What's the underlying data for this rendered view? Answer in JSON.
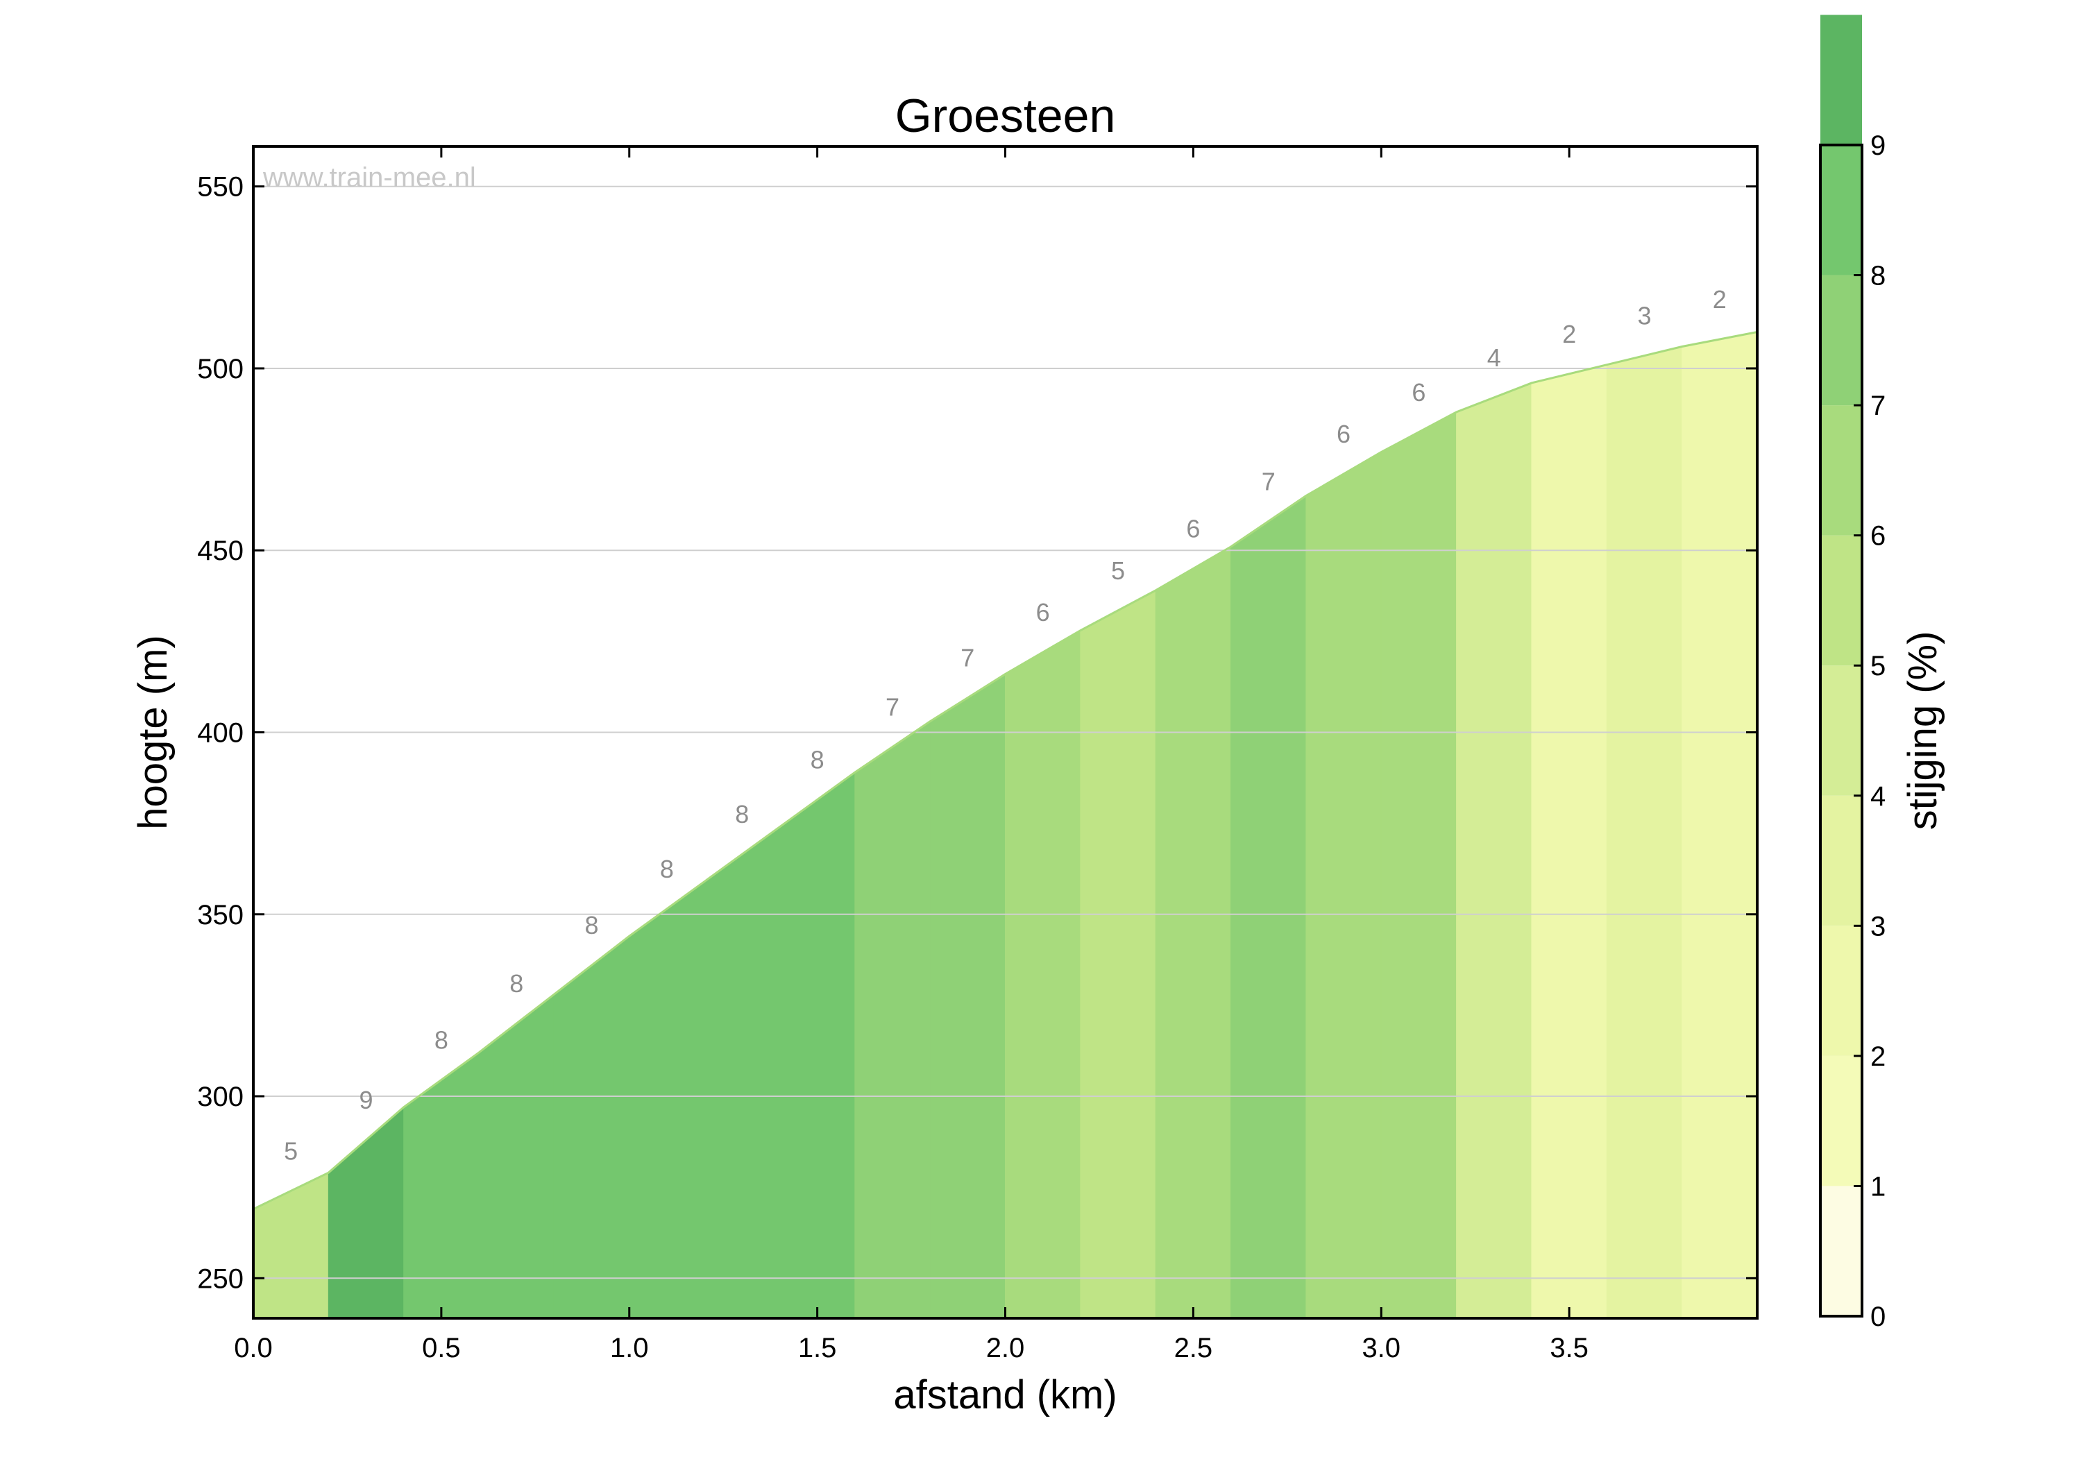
{
  "chart_data": {
    "type": "area",
    "title": "Groesteen",
    "watermark": "www.train-mee.nl",
    "xlabel": "afstand (km)",
    "ylabel": "hoogte (m)",
    "xlim": [
      0,
      4.0
    ],
    "ylim": [
      239,
      561
    ],
    "xticks": [
      0.0,
      0.5,
      1.0,
      1.5,
      2.0,
      2.5,
      3.0,
      3.5
    ],
    "xtick_labels": [
      "0.0",
      "0.5",
      "1.0",
      "1.5",
      "2.0",
      "2.5",
      "3.0",
      "3.5"
    ],
    "yticks": [
      250,
      300,
      350,
      400,
      450,
      500,
      550
    ],
    "ytick_labels": [
      "250",
      "300",
      "350",
      "400",
      "450",
      "500",
      "550"
    ],
    "grid": "horizontal",
    "segments": [
      {
        "x0": 0.0,
        "x1": 0.2,
        "y0": 269,
        "y1": 279,
        "grade": 5,
        "label": "5"
      },
      {
        "x0": 0.2,
        "x1": 0.4,
        "y0": 279,
        "y1": 297,
        "grade": 9,
        "label": "9"
      },
      {
        "x0": 0.4,
        "x1": 0.6,
        "y0": 297,
        "y1": 312,
        "grade": 8,
        "label": "8"
      },
      {
        "x0": 0.6,
        "x1": 0.8,
        "y0": 312,
        "y1": 328,
        "grade": 8,
        "label": "8"
      },
      {
        "x0": 0.8,
        "x1": 1.0,
        "y0": 328,
        "y1": 344,
        "grade": 8,
        "label": "8"
      },
      {
        "x0": 1.0,
        "x1": 1.2,
        "y0": 344,
        "y1": 359,
        "grade": 8,
        "label": "8"
      },
      {
        "x0": 1.2,
        "x1": 1.4,
        "y0": 359,
        "y1": 374,
        "grade": 8,
        "label": "8"
      },
      {
        "x0": 1.4,
        "x1": 1.6,
        "y0": 374,
        "y1": 389,
        "grade": 8,
        "label": "8"
      },
      {
        "x0": 1.6,
        "x1": 1.8,
        "y0": 389,
        "y1": 403,
        "grade": 7,
        "label": "7"
      },
      {
        "x0": 1.8,
        "x1": 2.0,
        "y0": 403,
        "y1": 416,
        "grade": 7,
        "label": "7"
      },
      {
        "x0": 2.0,
        "x1": 2.2,
        "y0": 416,
        "y1": 428,
        "grade": 6,
        "label": "6"
      },
      {
        "x0": 2.2,
        "x1": 2.4,
        "y0": 428,
        "y1": 439,
        "grade": 5,
        "label": "5"
      },
      {
        "x0": 2.4,
        "x1": 2.6,
        "y0": 439,
        "y1": 451,
        "grade": 6,
        "label": "6"
      },
      {
        "x0": 2.6,
        "x1": 2.8,
        "y0": 451,
        "y1": 465,
        "grade": 7,
        "label": "7"
      },
      {
        "x0": 2.8,
        "x1": 3.0,
        "y0": 465,
        "y1": 477,
        "grade": 6,
        "label": "6"
      },
      {
        "x0": 3.0,
        "x1": 3.2,
        "y0": 477,
        "y1": 488,
        "grade": 6,
        "label": "6"
      },
      {
        "x0": 3.2,
        "x1": 3.4,
        "y0": 488,
        "y1": 496,
        "grade": 4,
        "label": "4"
      },
      {
        "x0": 3.4,
        "x1": 3.6,
        "y0": 496,
        "y1": 501,
        "grade": 2,
        "label": "2"
      },
      {
        "x0": 3.6,
        "x1": 3.8,
        "y0": 501,
        "y1": 506,
        "grade": 3,
        "label": "3"
      },
      {
        "x0": 3.8,
        "x1": 4.0,
        "y0": 506,
        "y1": 510,
        "grade": 2,
        "label": "2"
      }
    ],
    "colorbar": {
      "label": "stijging (%)",
      "range": [
        0,
        9
      ],
      "ticks": [
        0,
        1,
        2,
        3,
        4,
        5,
        6,
        7,
        8,
        9
      ],
      "tick_labels": [
        "0",
        "1",
        "2",
        "3",
        "4",
        "5",
        "6",
        "7",
        "8",
        "9"
      ],
      "colors": [
        "#fdfce3",
        "#f4fbb8",
        "#eef8ac",
        "#e4f3a1",
        "#d4ed96",
        "#bfe486",
        "#a8db7d",
        "#8fd176",
        "#74c76e",
        "#5cb562"
      ]
    },
    "line_color": "#a8db7d"
  }
}
